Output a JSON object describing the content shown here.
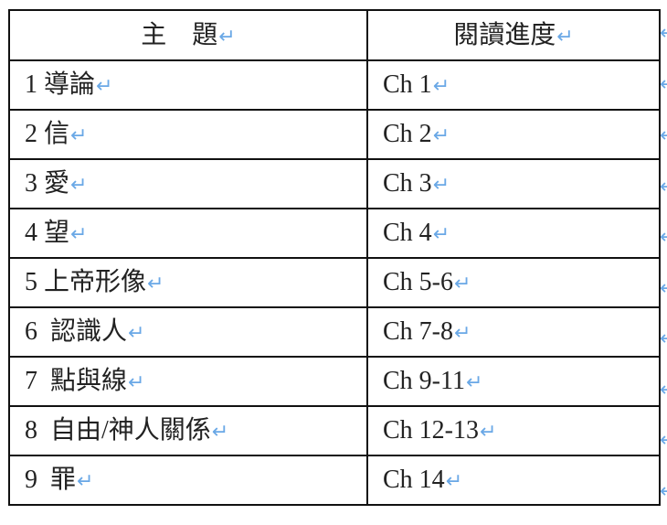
{
  "table": {
    "headers": [
      "主　題",
      "閱讀進度"
    ],
    "rows": [
      {
        "topic": "1 導論",
        "progress": "Ch 1"
      },
      {
        "topic": "2 信",
        "progress": "Ch 2"
      },
      {
        "topic": "3 愛",
        "progress": "Ch 3"
      },
      {
        "topic": "4 望",
        "progress": "Ch 4"
      },
      {
        "topic": "5 上帝形像",
        "progress": "Ch 5-6"
      },
      {
        "topic": "6  認識人",
        "progress": "Ch 7-8"
      },
      {
        "topic": "7  點與線",
        "progress": "Ch 9-11"
      },
      {
        "topic": "8  自由/神人關係",
        "progress": "Ch 12-13"
      },
      {
        "topic": "9  罪",
        "progress": "Ch 14"
      }
    ]
  },
  "formatting_marks": {
    "paragraph_mark": "↵",
    "row_end_mark": "←",
    "color": "#6aa8e6"
  }
}
